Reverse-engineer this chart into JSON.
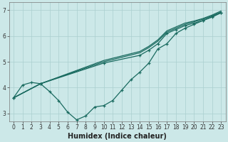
{
  "title": "",
  "xlabel": "Humidex (Indice chaleur)",
  "ylabel": "",
  "bg_color": "#cce8e8",
  "line_color": "#1a6b60",
  "grid_color": "#aacfcf",
  "xlim": [
    -0.5,
    23.5
  ],
  "ylim": [
    2.7,
    7.3
  ],
  "xticks": [
    0,
    1,
    2,
    3,
    4,
    5,
    6,
    7,
    8,
    9,
    10,
    11,
    12,
    13,
    14,
    15,
    16,
    17,
    18,
    19,
    20,
    21,
    22,
    23
  ],
  "yticks": [
    3,
    4,
    5,
    6,
    7
  ],
  "line1_x": [
    0,
    1,
    2,
    3,
    4,
    5,
    6,
    7,
    8,
    9,
    10,
    11,
    12,
    13,
    14,
    15,
    16,
    17,
    18,
    19,
    20,
    21,
    22,
    23
  ],
  "line1_y": [
    3.6,
    4.1,
    4.2,
    4.15,
    3.85,
    3.5,
    3.05,
    2.75,
    2.9,
    3.25,
    3.3,
    3.5,
    3.9,
    4.3,
    4.6,
    4.95,
    5.5,
    5.7,
    6.1,
    6.3,
    6.45,
    6.6,
    6.75,
    6.9
  ],
  "line2_x": [
    0,
    3,
    10,
    14,
    15,
    16,
    17,
    18,
    19,
    20,
    21,
    22,
    23
  ],
  "line2_y": [
    3.6,
    4.15,
    4.95,
    5.25,
    5.45,
    5.7,
    6.1,
    6.25,
    6.4,
    6.5,
    6.6,
    6.73,
    6.9
  ],
  "line3_x": [
    0,
    3,
    10,
    14,
    15,
    16,
    17,
    18,
    19,
    20,
    21,
    22,
    23
  ],
  "line3_y": [
    3.6,
    4.15,
    5.0,
    5.35,
    5.55,
    5.8,
    6.15,
    6.3,
    6.45,
    6.55,
    6.65,
    6.78,
    6.93
  ],
  "line4_x": [
    0,
    3,
    10,
    14,
    15,
    16,
    17,
    18,
    19,
    20,
    21,
    22,
    23
  ],
  "line4_y": [
    3.6,
    4.15,
    5.05,
    5.4,
    5.6,
    5.85,
    6.2,
    6.35,
    6.5,
    6.58,
    6.68,
    6.81,
    6.97
  ],
  "marker_size": 3.5,
  "linewidth": 0.9,
  "tick_fontsize": 5.5,
  "xlabel_fontsize": 7.0,
  "axes_linewidth": 0.5
}
